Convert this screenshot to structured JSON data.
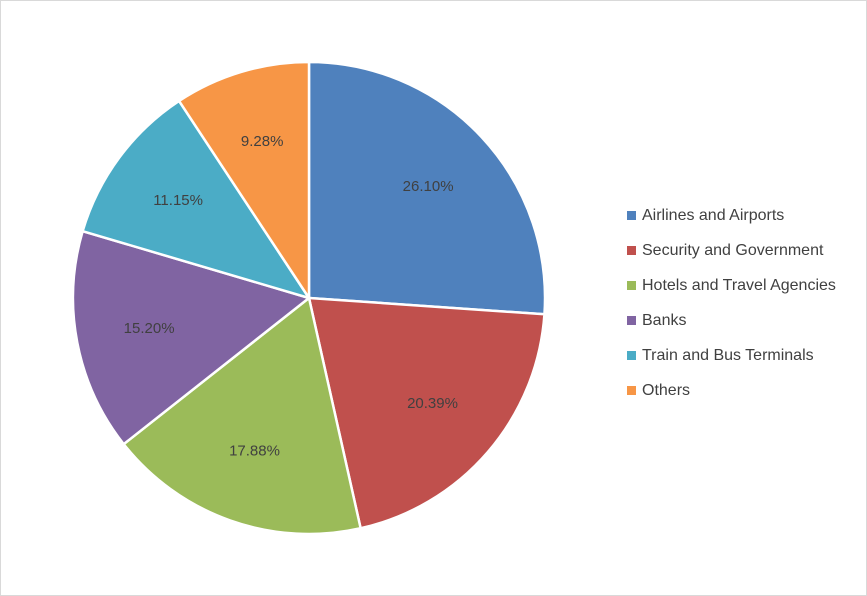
{
  "chart_data": {
    "type": "pie",
    "title": "",
    "legend_position": "right",
    "slices": [
      {
        "name": "Airlines and Airports",
        "value": 26.1,
        "label": "26.10%",
        "color": "#4f81bd"
      },
      {
        "name": "Security and Government",
        "value": 20.39,
        "label": "20.39%",
        "color": "#c0504d"
      },
      {
        "name": "Hotels and Travel Agencies",
        "value": 17.88,
        "label": "17.88%",
        "color": "#9bbb59"
      },
      {
        "name": "Banks",
        "value": 15.2,
        "label": "15.20%",
        "color": "#8064a2"
      },
      {
        "name": "Train and Bus Terminals",
        "value": 11.15,
        "label": "11.15%",
        "color": "#4bacc6"
      },
      {
        "name": "Others",
        "value": 9.28,
        "label": "9.28%",
        "color": "#f79646"
      }
    ]
  }
}
